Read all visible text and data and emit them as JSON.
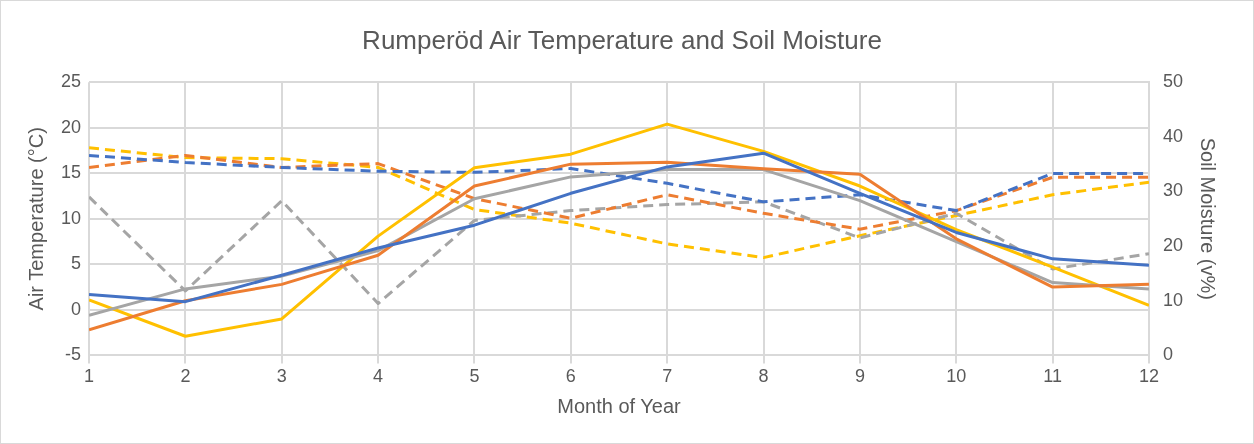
{
  "chart_data": {
    "type": "line",
    "title": "Rumperöd Air Temperature and Soil Moisture",
    "xlabel": "Month of Year",
    "ylabel": "Air Temperature (°C)",
    "y2label": "Soil Moisture (v%)",
    "x": [
      1,
      2,
      3,
      4,
      5,
      6,
      7,
      8,
      9,
      10,
      11,
      12
    ],
    "xlim": [
      1,
      12
    ],
    "xticks": [
      1,
      2,
      3,
      4,
      5,
      6,
      7,
      8,
      9,
      10,
      11,
      12
    ],
    "ylim": [
      -5,
      25
    ],
    "yticks": [
      -5,
      0,
      5,
      10,
      15,
      20,
      25
    ],
    "y2lim": [
      0,
      50
    ],
    "y2ticks": [
      0,
      10,
      20,
      30,
      40,
      50
    ],
    "grid": true,
    "legend": false,
    "marker": "none",
    "series": [
      {
        "color": "#4472c4",
        "line_style": "solid",
        "values": [
          1.7,
          0.9,
          3.8,
          6.8,
          9.3,
          12.8,
          15.7,
          17.2,
          12.8,
          8.5,
          5.6,
          4.9
        ]
      },
      {
        "color": "#ed7d31",
        "line_style": "solid",
        "values": [
          -2.2,
          1.0,
          2.8,
          6.0,
          13.6,
          16.0,
          16.2,
          15.5,
          14.9,
          7.8,
          2.5,
          2.8
        ]
      },
      {
        "color": "#a5a5a5",
        "line_style": "solid",
        "values": [
          -0.6,
          2.3,
          3.7,
          6.5,
          12.2,
          14.6,
          15.4,
          15.4,
          12.0,
          7.5,
          3.0,
          2.3
        ]
      },
      {
        "color": "#ffc000",
        "line_style": "solid",
        "values": [
          1.1,
          -2.9,
          -1.0,
          8.1,
          15.6,
          17.1,
          20.4,
          17.4,
          13.6,
          8.8,
          4.7,
          0.5
        ]
      },
      {
        "color": "#4472c4",
        "line_style": "dashed",
        "axis": "y2",
        "values": [
          36.6,
          35.3,
          34.4,
          33.7,
          33.5,
          34.2,
          31.5,
          28.1,
          29.4,
          26.5,
          33.3,
          33.3
        ]
      },
      {
        "color": "#ed7d31",
        "line_style": "dashed",
        "axis": "y2",
        "values": [
          34.4,
          36.6,
          34.4,
          35.1,
          28.7,
          25.1,
          29.4,
          26.0,
          23.1,
          26.5,
          32.6,
          32.6
        ]
      },
      {
        "color": "#a5a5a5",
        "line_style": "dashed",
        "axis": "y2",
        "values": [
          29.0,
          11.8,
          28.3,
          9.5,
          24.7,
          26.5,
          27.6,
          28.1,
          21.5,
          26.0,
          15.8,
          18.6
        ]
      },
      {
        "color": "#ffc000",
        "line_style": "dashed",
        "axis": "y2",
        "values": [
          38.0,
          36.2,
          36.0,
          34.4,
          26.7,
          24.2,
          20.4,
          17.9,
          21.9,
          25.6,
          29.4,
          31.7
        ]
      }
    ]
  }
}
